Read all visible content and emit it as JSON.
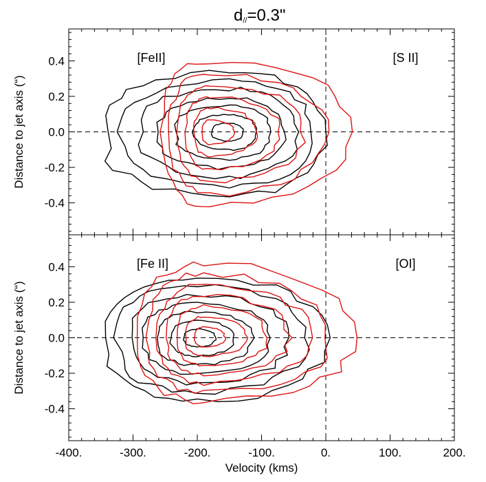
{
  "title": "d",
  "title_sub": "//",
  "title_value": "=0.3\"",
  "chart_data": [
    {
      "type": "contour",
      "xlabel": "",
      "ylabel": "Distance to jet axis (“)",
      "xlim": [
        -400,
        200
      ],
      "ylim": [
        -0.58,
        0.58
      ],
      "yticks": [
        -0.4,
        -0.2,
        0.0,
        0.2,
        0.4
      ],
      "ytick_labels": [
        "-0.4",
        "-0.2",
        "0.0",
        "0.2",
        "0.4"
      ],
      "reference_lines": {
        "x": 0,
        "y": 0
      },
      "series": [
        {
          "name": "[FeII]",
          "color": "#000000",
          "levels": 7,
          "x_extent": [
            -345,
            0
          ],
          "y_extent": [
            -0.36,
            0.34
          ],
          "peak": [
            -150,
            0.0
          ]
        },
        {
          "name": "[S II]",
          "color": "#dd1111",
          "levels": 6,
          "x_extent": [
            -255,
            40
          ],
          "y_extent": [
            -0.42,
            0.4
          ],
          "peak": [
            -180,
            0.0
          ]
        }
      ]
    },
    {
      "type": "contour",
      "xlabel": "Velocity (kms)",
      "ylabel": "Distance to jet axis (“)",
      "xlim": [
        -400,
        200
      ],
      "ylim": [
        -0.58,
        0.58
      ],
      "xticks": [
        -400,
        -300,
        -200,
        -100,
        0,
        100,
        200
      ],
      "xtick_labels": [
        "-400.",
        "-300.",
        "-200.",
        "-100.",
        "0.",
        "100.",
        "200."
      ],
      "yticks": [
        -0.4,
        -0.2,
        0.0,
        0.2,
        0.4
      ],
      "ytick_labels": [
        "-0.4",
        "-0.2",
        "0.0",
        "0.2",
        "0.4"
      ],
      "reference_lines": {
        "x": 0,
        "y": 0
      },
      "series": [
        {
          "name": "[Fe II]",
          "color": "#000000",
          "levels": 7,
          "x_extent": [
            -345,
            0
          ],
          "y_extent": [
            -0.36,
            0.34
          ],
          "peak": [
            -200,
            0.0
          ]
        },
        {
          "name": "[OI]",
          "color": "#dd1111",
          "levels": 7,
          "x_extent": [
            -290,
            40
          ],
          "y_extent": [
            -0.36,
            0.42
          ],
          "peak": [
            -190,
            0.0
          ]
        }
      ]
    }
  ]
}
